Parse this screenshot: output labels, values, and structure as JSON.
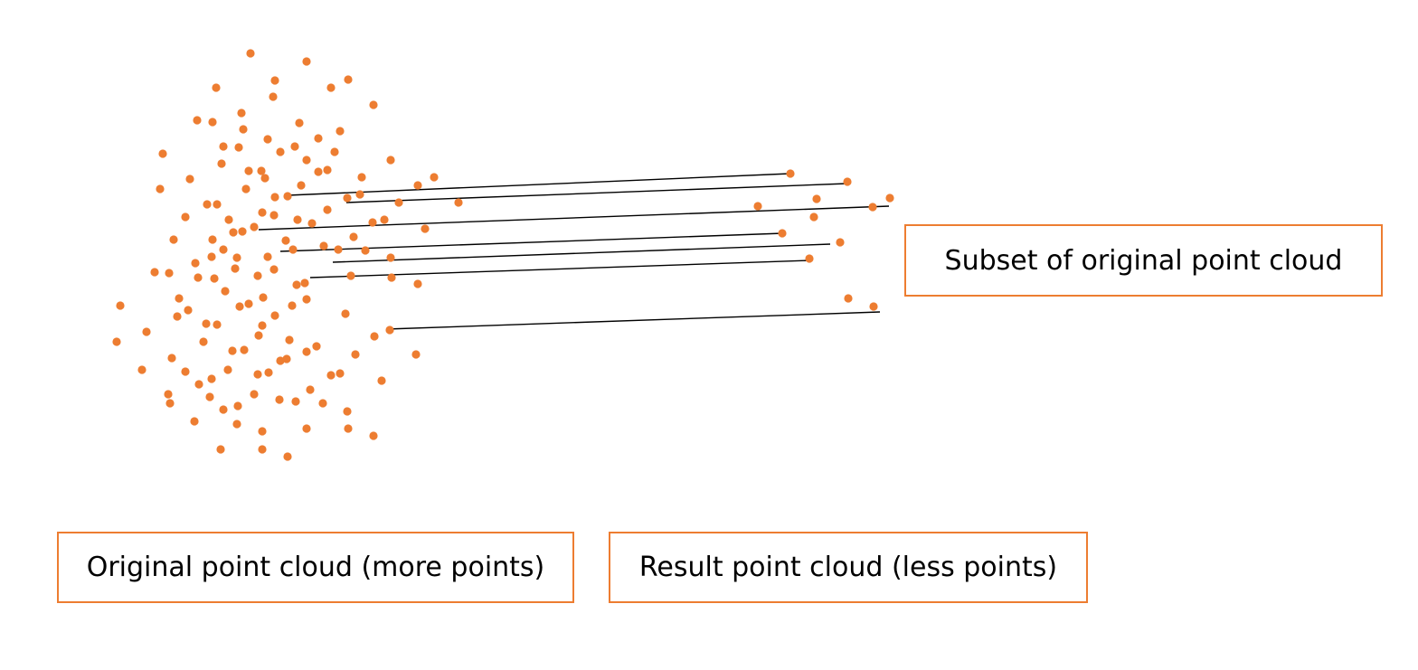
{
  "labels": {
    "subset": "Subset of original point cloud",
    "original": "Original point cloud (more points)",
    "result": "Result point cloud (less points)"
  },
  "colors": {
    "point": "#ED7D31",
    "connector": "#000000",
    "box_border": "#ED7D31"
  }
}
